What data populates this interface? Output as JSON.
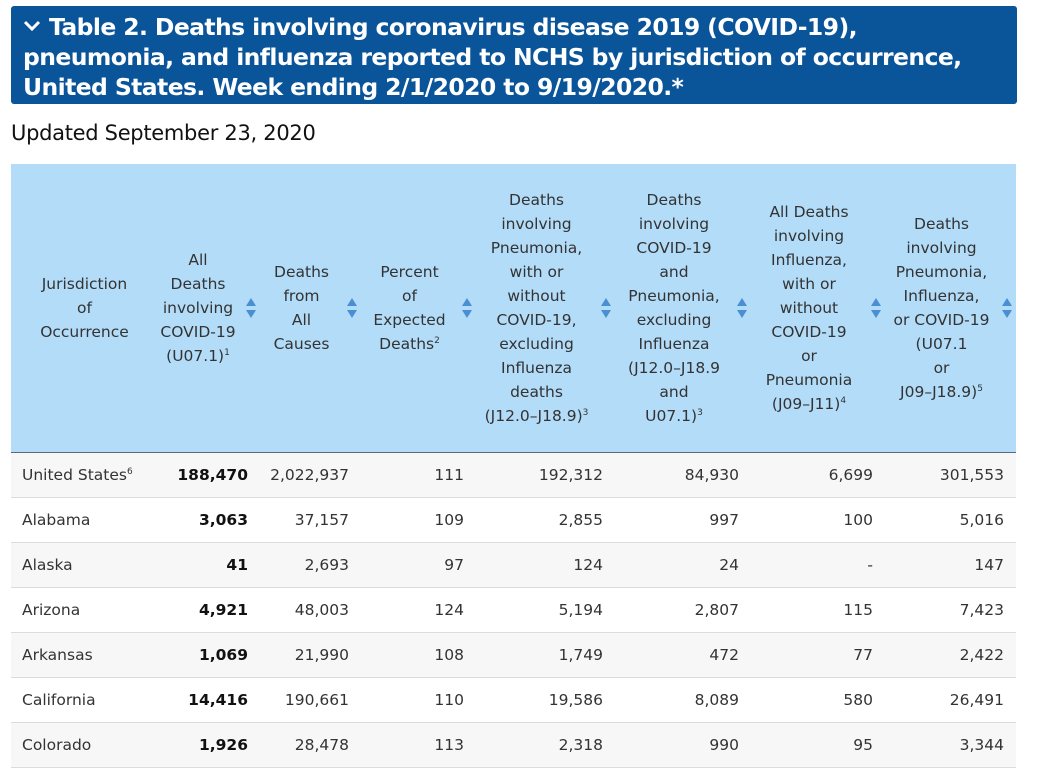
{
  "banner": {
    "title": "Table 2. Deaths involving coronavirus disease 2019 (COVID-19), pneumonia, and influenza reported to NCHS by jurisdiction of occurrence, United States. Week ending 2/1/2020 to 9/19/2020.*",
    "icon": "chevron-down-icon"
  },
  "updated": "Updated September 23, 2020",
  "colors": {
    "banner": "#0a5499",
    "header_bg": "#b3dcf8",
    "sort_arrows": "#4a8fd2"
  },
  "columns": [
    {
      "label": "Jurisdiction of Occurrence",
      "sup": ""
    },
    {
      "label": "All Deaths involving COVID-19 (U07.1)",
      "sup": "1"
    },
    {
      "label": "Deaths from All Causes",
      "sup": ""
    },
    {
      "label": "Percent of Expected Deaths",
      "sup": "2"
    },
    {
      "label": "Deaths involving Pneumonia, with or without COVID-19, excluding Influenza deaths (J12.0–J18.9)",
      "sup": "3"
    },
    {
      "label": "Deaths involving COVID-19 and Pneumonia, excluding Influenza (J12.0–J18.9 and U07.1)",
      "sup": "3"
    },
    {
      "label": "All Deaths involving Influenza, with or without COVID-19 or Pneumonia (J09–J11)",
      "sup": "4"
    },
    {
      "label": "Deaths involving Pneumonia, Influenza, or COVID-19 (U07.1 or J09–J18.9)",
      "sup": "5"
    }
  ],
  "rows": [
    {
      "name": "United States",
      "sup": "6",
      "values": [
        "188,470",
        "2,022,937",
        "111",
        "192,312",
        "84,930",
        "6,699",
        "301,553"
      ]
    },
    {
      "name": "Alabama",
      "sup": "",
      "values": [
        "3,063",
        "37,157",
        "109",
        "2,855",
        "997",
        "100",
        "5,016"
      ]
    },
    {
      "name": "Alaska",
      "sup": "",
      "values": [
        "41",
        "2,693",
        "97",
        "124",
        "24",
        "-",
        "147"
      ]
    },
    {
      "name": "Arizona",
      "sup": "",
      "values": [
        "4,921",
        "48,003",
        "124",
        "5,194",
        "2,807",
        "115",
        "7,423"
      ]
    },
    {
      "name": "Arkansas",
      "sup": "",
      "values": [
        "1,069",
        "21,990",
        "108",
        "1,749",
        "472",
        "77",
        "2,422"
      ]
    },
    {
      "name": "California",
      "sup": "",
      "values": [
        "14,416",
        "190,661",
        "110",
        "19,586",
        "8,089",
        "580",
        "26,491"
      ]
    },
    {
      "name": "Colorado",
      "sup": "",
      "values": [
        "1,926",
        "28,478",
        "113",
        "2,318",
        "990",
        "95",
        "3,344"
      ]
    }
  ]
}
